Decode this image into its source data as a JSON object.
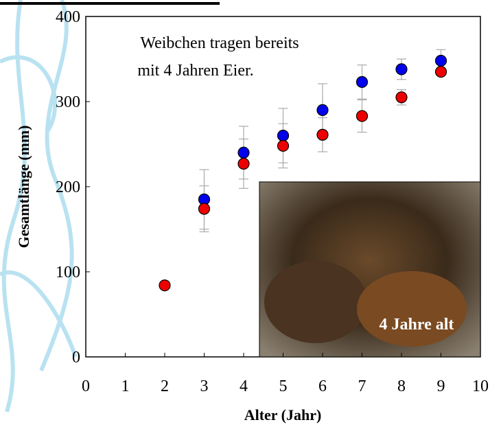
{
  "chart_data": {
    "type": "scatter",
    "x_label": "Alter (Jahr)",
    "y_label": "Gesamtlänge (mm)",
    "annotations": [
      "Weibchen tragen bereits",
      "mit 4 Jahren Eier.",
      "4 Jahre alt"
    ],
    "xlim": [
      0,
      10
    ],
    "xticks": [
      0,
      1,
      2,
      3,
      4,
      5,
      6,
      7,
      8,
      9,
      10
    ],
    "ylim": [
      0,
      400
    ],
    "yticks": [
      0,
      100,
      200,
      300,
      400
    ],
    "grid": false,
    "series": [
      {
        "color": "#0000ee",
        "x": [
          3,
          4,
          5,
          6,
          7,
          8,
          9
        ],
        "values": [
          185,
          240,
          260,
          290,
          323,
          338,
          348
        ],
        "errors": [
          35,
          31,
          32,
          31,
          20,
          12,
          13
        ]
      },
      {
        "color": "#ee0000",
        "x": [
          2,
          3,
          4,
          5,
          6,
          7,
          8,
          9
        ],
        "values": [
          84,
          174,
          227,
          248,
          261,
          283,
          305,
          335
        ],
        "errors": [
          null,
          27,
          29,
          26,
          20,
          19,
          9,
          null
        ]
      }
    ]
  }
}
